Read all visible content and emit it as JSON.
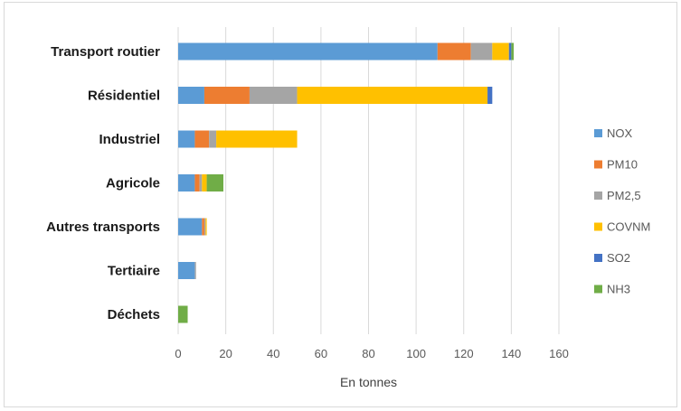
{
  "chart_data": {
    "type": "bar",
    "orientation": "horizontal",
    "stacked": true,
    "categories": [
      "Transport routier",
      "Résidentiel",
      "Industriel",
      "Agricole",
      "Autres transports",
      "Tertiaire",
      "Déchets"
    ],
    "series": [
      {
        "name": "NOX",
        "color": "#5b9bd5",
        "values": [
          109,
          11,
          7,
          7,
          10,
          7,
          0
        ]
      },
      {
        "name": "PM10",
        "color": "#ed7d31",
        "values": [
          14,
          19,
          6,
          2,
          1,
          0,
          0
        ]
      },
      {
        "name": "PM2,5",
        "color": "#a5a5a5",
        "values": [
          9,
          20,
          3,
          1,
          0.5,
          0.5,
          0
        ]
      },
      {
        "name": "COVNM",
        "color": "#ffc000",
        "values": [
          7,
          80,
          34,
          2,
          0.5,
          0,
          0
        ]
      },
      {
        "name": "SO2",
        "color": "#4472c4",
        "values": [
          1,
          2,
          0,
          0,
          0,
          0,
          0
        ]
      },
      {
        "name": "NH3",
        "color": "#70ad47",
        "values": [
          1,
          0,
          0,
          7,
          0,
          0,
          4
        ]
      }
    ],
    "xlabel": "En tonnes",
    "ylabel": "",
    "title": "",
    "xlim": [
      0,
      160
    ],
    "xticks": [
      0,
      20,
      40,
      60,
      80,
      100,
      120,
      140,
      160
    ],
    "grid": "vertical",
    "legend": "right"
  }
}
